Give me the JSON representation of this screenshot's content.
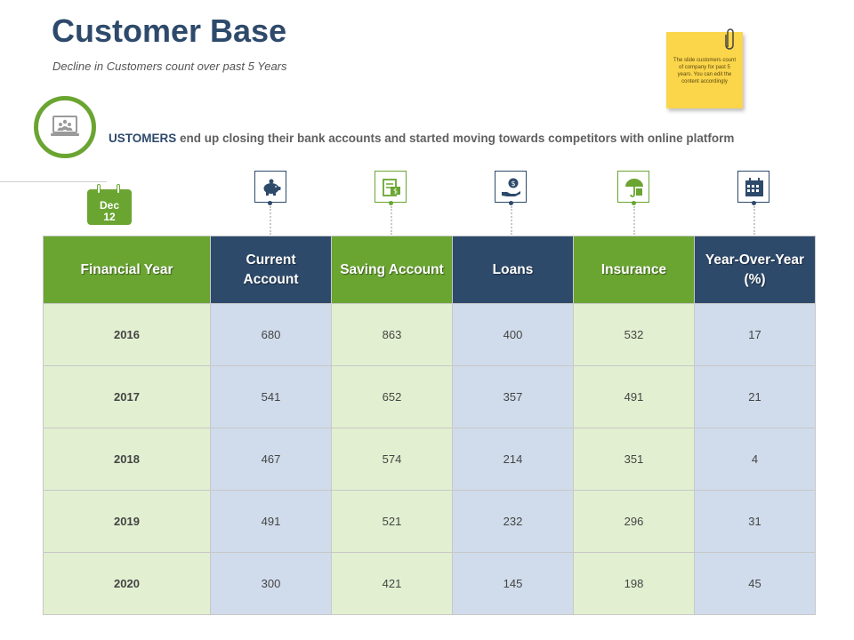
{
  "header": {
    "title": "Customer Base",
    "subtitle": "Decline in Customers count over past 5 Years"
  },
  "sticky_note": {
    "text": "The slide customers count of company for past 5 years. You can edit the content accordingly",
    "color": "#fbd54a"
  },
  "tagline": {
    "strong": "USTOMERS",
    "rest": " end up closing their bank accounts and started moving towards competitors with online platform"
  },
  "calendar": {
    "month": "Dec",
    "day": "12"
  },
  "icons": [
    "calendar-icon",
    "laptop-users-icon",
    "piggy-bank-icon",
    "money-icon",
    "hand-dollar-icon",
    "umbrella-icon",
    "schedule-icon"
  ],
  "colors": {
    "green": "#6aa531",
    "navy": "#2e4a6b",
    "light_green": "#e2f0d1",
    "light_blue": "#d0dceb"
  },
  "table": {
    "columns": [
      "Financial Year",
      "Current Account",
      "Saving Account",
      "Loans",
      "Insurance",
      "Year-Over-Year (%)"
    ],
    "rows": [
      [
        "2016",
        "680",
        "863",
        "400",
        "532",
        "17"
      ],
      [
        "2017",
        "541",
        "652",
        "357",
        "491",
        "21"
      ],
      [
        "2018",
        "467",
        "574",
        "214",
        "351",
        "4"
      ],
      [
        "2019",
        "491",
        "521",
        "232",
        "296",
        "31"
      ],
      [
        "2020",
        "300",
        "421",
        "145",
        "198",
        "45"
      ]
    ]
  }
}
